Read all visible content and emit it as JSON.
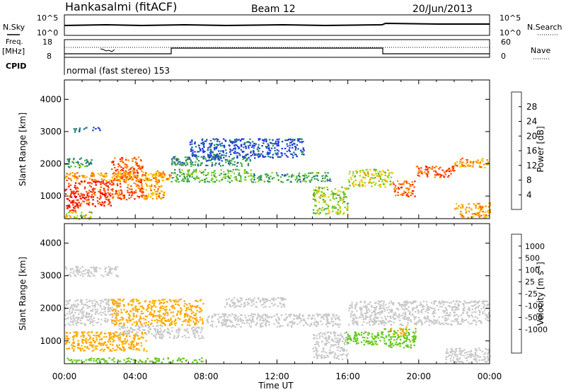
{
  "header": {
    "station": "Hankasalmi (fitACF)",
    "beam": "Beam 12",
    "date": "20/Jun/2013"
  },
  "status_panel": {
    "nsky_label": "N.Sky",
    "nsearch_label": "N.Search",
    "count_ticks": [
      "10^5",
      "10^0"
    ],
    "freq_label": "Freq.",
    "freq_unit": "[MHz]",
    "freq_ticks": [
      "18",
      "8"
    ],
    "nave_label": "Nave",
    "nave_ticks": [
      "60",
      "0"
    ],
    "cpid_label": "CPID",
    "cpid_value": "normal (fast stereo) 153"
  },
  "colors": {
    "power": [
      "#1e32ff",
      "#1e50b4",
      "#2d8c64",
      "#46b43c",
      "#96d21e",
      "#f0c800",
      "#ff8c00",
      "#ff5000",
      "#ff1e00",
      "#e60000"
    ],
    "velocity": [
      "#1e28c8",
      "#1e64c8",
      "#0a965a",
      "#64c81e",
      "#c8c8c8",
      "#c8c8c8",
      "#ffaa00",
      "#ff7800",
      "#ff3c00",
      "#ff0000"
    ]
  },
  "chart_data": [
    {
      "type": "heatmap",
      "parameter": "Power",
      "xlabel": "",
      "ylabel": "Slant Range [km]",
      "x_range_hours": [
        0,
        24
      ],
      "ylim": [
        300,
        4600
      ],
      "y_ticks": [
        1000,
        2000,
        3000,
        4000
      ],
      "colorbar": {
        "label": "Power [dB]",
        "tick_labels": [
          "4",
          "8",
          "12",
          "16",
          "20",
          "24",
          "28"
        ],
        "tick_values": [
          4,
          8,
          12,
          16,
          20,
          24,
          28
        ],
        "range": [
          0,
          32
        ]
      },
      "bands": [
        {
          "t0": 0.0,
          "t1": 0.8,
          "r0": 550,
          "r1": 1450,
          "level": 28
        },
        {
          "t0": 0.8,
          "t1": 2.6,
          "r0": 700,
          "r1": 1500,
          "level": 26
        },
        {
          "t0": 2.6,
          "t1": 4.4,
          "r0": 900,
          "r1": 2250,
          "level": 24
        },
        {
          "t0": 4.4,
          "t1": 5.6,
          "r0": 900,
          "r1": 1800,
          "level": 20
        },
        {
          "t0": 0.0,
          "t1": 6.0,
          "r0": 1500,
          "r1": 1750,
          "level": 20
        },
        {
          "t0": 0.0,
          "t1": 1.5,
          "r0": 1900,
          "r1": 2200,
          "level": 10
        },
        {
          "t0": 0.0,
          "t1": 1.5,
          "r0": 300,
          "r1": 550,
          "level": 16
        },
        {
          "t0": 6.0,
          "t1": 10.5,
          "r0": 1450,
          "r1": 1850,
          "level": 12
        },
        {
          "t0": 6.0,
          "t1": 10.5,
          "r0": 1950,
          "r1": 2250,
          "level": 8
        },
        {
          "t0": 10.5,
          "t1": 15.0,
          "r0": 1450,
          "r1": 1750,
          "level": 10
        },
        {
          "t0": 14.0,
          "t1": 16.0,
          "r0": 450,
          "r1": 1300,
          "level": 14
        },
        {
          "t0": 16.0,
          "t1": 18.5,
          "r0": 1300,
          "r1": 1850,
          "level": 16
        },
        {
          "t0": 18.5,
          "t1": 19.8,
          "r0": 1000,
          "r1": 1500,
          "level": 24
        },
        {
          "t0": 19.8,
          "t1": 22.0,
          "r0": 1600,
          "r1": 1950,
          "level": 24
        },
        {
          "t0": 22.0,
          "t1": 24.0,
          "r0": 1900,
          "r1": 2200,
          "level": 20
        },
        {
          "t0": 22.0,
          "t1": 24.0,
          "r0": 350,
          "r1": 800,
          "level": 20
        },
        {
          "t0": 0.5,
          "t1": 2.0,
          "r0": 3000,
          "r1": 3150,
          "level": 6
        },
        {
          "t0": 7.0,
          "t1": 13.5,
          "r0": 2200,
          "r1": 2800,
          "level": 4
        }
      ]
    },
    {
      "type": "heatmap",
      "parameter": "Velocity",
      "xlabel": "Time UT",
      "ylabel": "Slant Range [km]",
      "x_range_hours": [
        0,
        24
      ],
      "x_tick_labels": [
        "00:00",
        "04:00",
        "08:00",
        "12:00",
        "16:00",
        "20:00",
        "00:00"
      ],
      "x_tick_values": [
        0,
        4,
        8,
        12,
        16,
        20,
        24
      ],
      "ylim": [
        300,
        4600
      ],
      "y_ticks": [
        1000,
        2000,
        3000,
        4000
      ],
      "colorbar": {
        "label": "Velocity [m s",
        "label_sup": "-1",
        "label_end": "]",
        "tick_labels": [
          "1000",
          "500",
          "100",
          "25",
          "-25",
          "-100",
          "-500",
          "-1000"
        ],
        "tick_values": [
          1000,
          500,
          100,
          25,
          -25,
          -100,
          -500,
          -1000
        ]
      },
      "bands": [
        {
          "t0": 0.0,
          "t1": 3.0,
          "r0": 1500,
          "r1": 2300,
          "vel": 0
        },
        {
          "t0": 0.0,
          "t1": 4.6,
          "r0": 700,
          "r1": 1300,
          "vel": -150
        },
        {
          "t0": 2.6,
          "t1": 7.8,
          "r0": 1500,
          "r1": 2300,
          "vel": -180
        },
        {
          "t0": 3.0,
          "t1": 5.5,
          "r0": 1200,
          "r1": 1500,
          "vel": 0
        },
        {
          "t0": 5.0,
          "t1": 7.8,
          "r0": 1100,
          "r1": 1450,
          "vel": 0
        },
        {
          "t0": 0.0,
          "t1": 8.0,
          "r0": 350,
          "r1": 500,
          "vel": 60
        },
        {
          "t0": 8.0,
          "t1": 15.5,
          "r0": 1450,
          "r1": 1850,
          "vel": 0
        },
        {
          "t0": 9.0,
          "t1": 12.5,
          "r0": 2050,
          "r1": 2350,
          "vel": 0
        },
        {
          "t0": 14.0,
          "t1": 16.0,
          "r0": 450,
          "r1": 1300,
          "vel": 0
        },
        {
          "t0": 15.8,
          "t1": 18.0,
          "r0": 900,
          "r1": 1300,
          "vel": 60
        },
        {
          "t0": 18.0,
          "t1": 19.8,
          "r0": 800,
          "r1": 1400,
          "vel": 80
        },
        {
          "t0": 18.3,
          "t1": 19.3,
          "r0": 1200,
          "r1": 1450,
          "vel": -150
        },
        {
          "t0": 16.0,
          "t1": 24.0,
          "r0": 1500,
          "r1": 2250,
          "vel": 0
        },
        {
          "t0": 21.5,
          "t1": 24.0,
          "r0": 350,
          "r1": 800,
          "vel": 0
        },
        {
          "t0": 0.0,
          "t1": 3.0,
          "r0": 3000,
          "r1": 3300,
          "vel": 0
        }
      ]
    }
  ]
}
